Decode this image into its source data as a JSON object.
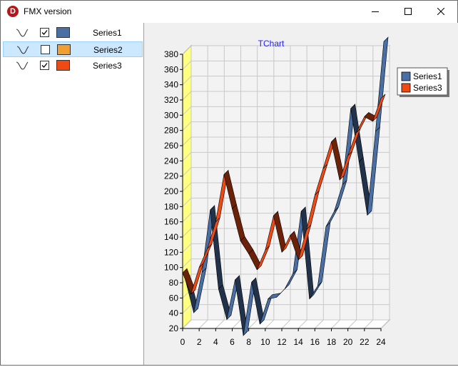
{
  "window": {
    "title": "FMX version",
    "icon_letter": "D",
    "buttons": [
      "minimize",
      "maximize",
      "close"
    ]
  },
  "series_list": [
    {
      "label": "Series1",
      "checked": true,
      "selected": false,
      "color": "#4a6fa5"
    },
    {
      "label": "Series2",
      "checked": false,
      "selected": true,
      "color": "#f0a030"
    },
    {
      "label": "Series3",
      "checked": true,
      "selected": false,
      "color": "#f04a14"
    }
  ],
  "chart_data": {
    "type": "line",
    "title": "TChart",
    "xlabel": "",
    "ylabel": "",
    "xlim": [
      0,
      24
    ],
    "ylim": [
      20,
      380
    ],
    "x_ticks": [
      0,
      2,
      4,
      6,
      8,
      10,
      12,
      14,
      16,
      18,
      20,
      22,
      24
    ],
    "y_ticks": [
      20,
      40,
      60,
      80,
      100,
      120,
      140,
      160,
      180,
      200,
      220,
      240,
      260,
      280,
      300,
      320,
      340,
      360,
      380
    ],
    "grid": true,
    "three_d": true,
    "legend_position": "top-right",
    "x": [
      0,
      1,
      2,
      3,
      4,
      5,
      6,
      7,
      8,
      9,
      10,
      11,
      12,
      13,
      14,
      15,
      16,
      17,
      18,
      19,
      20,
      21,
      22,
      23,
      24
    ],
    "series": [
      {
        "name": "Series1",
        "color": "#4a6fa5",
        "values": [
          80,
          37,
          90,
          172,
          68,
          28,
          80,
          7,
          77,
          22,
          55,
          57,
          68,
          88,
          170,
          55,
          72,
          150,
          170,
          205,
          305,
          235,
          165,
          275,
          393
        ]
      },
      {
        "name": "Series3",
        "color": "#f04a14",
        "values": [
          93,
          65,
          100,
          125,
          160,
          222,
          177,
          135,
          118,
          97,
          123,
          168,
          120,
          142,
          110,
          150,
          195,
          230,
          265,
          215,
          247,
          277,
          298,
          292,
          322
        ]
      }
    ]
  }
}
